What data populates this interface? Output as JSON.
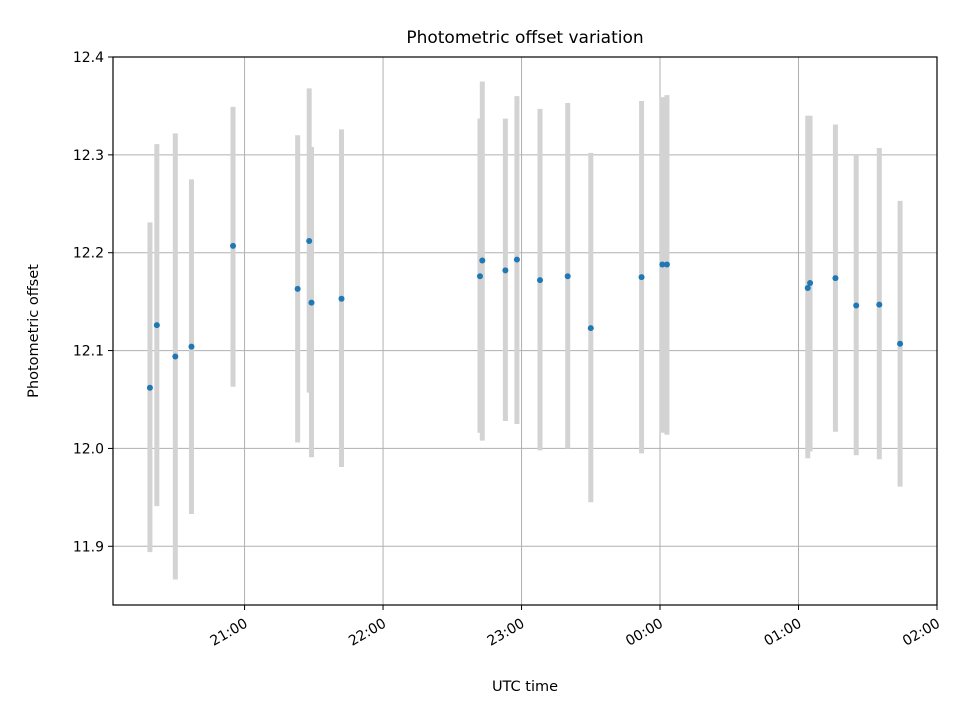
{
  "chart_data": {
    "type": "scatter",
    "title": "Photometric offset variation",
    "xlabel": "UTC time",
    "ylabel": "Photometric offset",
    "x_ticks": [
      "21:00",
      "22:00",
      "23:00",
      "00:00",
      "01:00",
      "02:00"
    ],
    "y_ticks": [
      "11.9",
      "12.0",
      "12.1",
      "12.2",
      "12.3",
      "12.4"
    ],
    "y_tick_values": [
      11.9,
      12.0,
      12.1,
      12.2,
      12.3,
      12.4
    ],
    "xlim": [
      "20:03",
      "02:00"
    ],
    "ylim": [
      11.84,
      12.4
    ],
    "grid": true,
    "point_color": "#1f77b4",
    "errorbar_color": "#d3d3d3",
    "points": [
      {
        "t": "20:19",
        "y": 12.062,
        "lo": 11.894,
        "hi": 12.231
      },
      {
        "t": "20:22",
        "y": 12.126,
        "lo": 11.941,
        "hi": 12.311
      },
      {
        "t": "20:30",
        "y": 12.094,
        "lo": 11.866,
        "hi": 12.322
      },
      {
        "t": "20:37",
        "y": 12.104,
        "lo": 11.933,
        "hi": 12.275
      },
      {
        "t": "20:55",
        "y": 12.207,
        "lo": 12.063,
        "hi": 12.349
      },
      {
        "t": "21:23",
        "y": 12.163,
        "lo": 12.006,
        "hi": 12.32
      },
      {
        "t": "21:28",
        "y": 12.212,
        "lo": 12.057,
        "hi": 12.368
      },
      {
        "t": "21:29",
        "y": 12.149,
        "lo": 11.991,
        "hi": 12.308
      },
      {
        "t": "21:42",
        "y": 12.153,
        "lo": 11.981,
        "hi": 12.326
      },
      {
        "t": "22:42",
        "y": 12.176,
        "lo": 12.016,
        "hi": 12.337
      },
      {
        "t": "22:43",
        "y": 12.192,
        "lo": 12.008,
        "hi": 12.375
      },
      {
        "t": "22:53",
        "y": 12.182,
        "lo": 12.028,
        "hi": 12.337
      },
      {
        "t": "22:58",
        "y": 12.193,
        "lo": 12.025,
        "hi": 12.36
      },
      {
        "t": "23:08",
        "y": 12.172,
        "lo": 11.998,
        "hi": 12.347
      },
      {
        "t": "23:20",
        "y": 12.176,
        "lo": 12.0,
        "hi": 12.353
      },
      {
        "t": "23:30",
        "y": 12.123,
        "lo": 11.945,
        "hi": 12.302
      },
      {
        "t": "23:52",
        "y": 12.175,
        "lo": 11.995,
        "hi": 12.355
      },
      {
        "t": "00:01",
        "y": 12.188,
        "lo": 12.016,
        "hi": 12.359
      },
      {
        "t": "00:03",
        "y": 12.188,
        "lo": 12.014,
        "hi": 12.361
      },
      {
        "t": "01:04",
        "y": 12.164,
        "lo": 11.99,
        "hi": 12.34
      },
      {
        "t": "01:05",
        "y": 12.169,
        "lo": 11.997,
        "hi": 12.34
      },
      {
        "t": "01:16",
        "y": 12.174,
        "lo": 12.017,
        "hi": 12.331
      },
      {
        "t": "01:25",
        "y": 12.146,
        "lo": 11.993,
        "hi": 12.3
      },
      {
        "t": "01:35",
        "y": 12.147,
        "lo": 11.989,
        "hi": 12.307
      },
      {
        "t": "01:44",
        "y": 12.107,
        "lo": 11.961,
        "hi": 12.253
      }
    ]
  }
}
